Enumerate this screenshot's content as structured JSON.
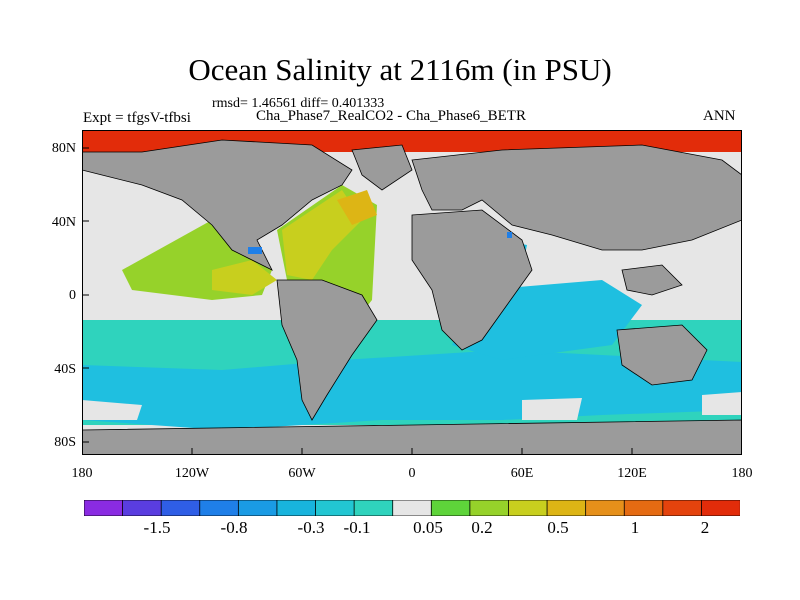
{
  "title": "Ocean Salinity at 2116m (in PSU)",
  "stats": "rmsd= 1.46561 diff= 0.401333",
  "subtitle": "Cha_Phase7_RealCO2 - Cha_Phase6_BETR",
  "left_label": "Expt = tfgsV-tfbsi",
  "right_label": "ANN",
  "lat_labels": [
    "80N",
    "40N",
    "0",
    "40S",
    "80S"
  ],
  "lon_labels": [
    "180",
    "120W",
    "60W",
    "0",
    "60E",
    "120E",
    "180"
  ],
  "colorbar": {
    "colors": [
      "#8a2be2",
      "#5a3de0",
      "#2f5ee6",
      "#1f7fe8",
      "#1a9be4",
      "#18b4dd",
      "#22c6d2",
      "#2fd3bd",
      "#e6e6e6",
      "#5ed43a",
      "#96d22a",
      "#c8cf1e",
      "#ddb515",
      "#e6901a",
      "#e56b12",
      "#e4430d",
      "#e22c0a"
    ],
    "labels": [
      "-1.5",
      "-0.8",
      "-0.3",
      "-0.1",
      "0.05",
      "0.2",
      "0.5",
      "1",
      "2"
    ]
  },
  "map_colors": {
    "land": "#9b9b9b",
    "near_zero": "#e6e6e6",
    "cyan": "#1fbfe0",
    "teal": "#2fd3bd",
    "lightgreen": "#96d22a",
    "yellowgreen": "#c8cf1e",
    "orange": "#ddb515",
    "red": "#e22c0a",
    "blue": "#1f7fe8"
  }
}
